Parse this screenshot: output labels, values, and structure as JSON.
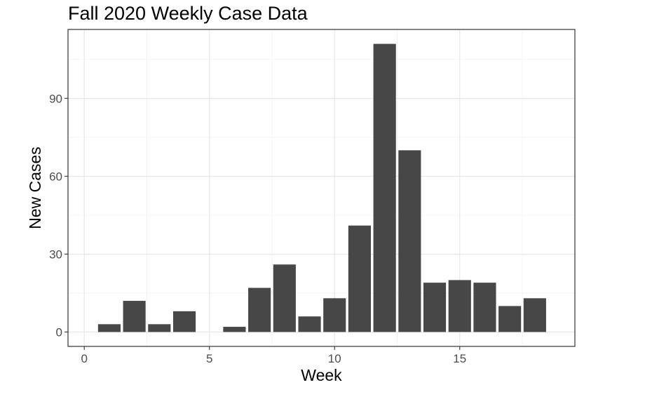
{
  "chart_data": {
    "type": "bar",
    "title": "Fall 2020 Weekly Case Data",
    "xlabel": "Week",
    "ylabel": "New Cases",
    "x": [
      1,
      2,
      3,
      4,
      5,
      6,
      7,
      8,
      9,
      10,
      11,
      12,
      13,
      14,
      15,
      16,
      17,
      18
    ],
    "values": [
      3,
      12,
      3,
      8,
      0,
      2,
      17,
      26,
      6,
      13,
      41,
      111,
      70,
      19,
      20,
      19,
      10,
      13
    ],
    "xlim": [
      -0.65,
      19.6
    ],
    "ylim": [
      -5.55,
      116.55
    ],
    "xticks": [
      0,
      5,
      10,
      15
    ],
    "yticks": [
      0,
      30,
      60,
      90
    ],
    "bar_color": "#474747",
    "grid": true,
    "legend": "none"
  }
}
